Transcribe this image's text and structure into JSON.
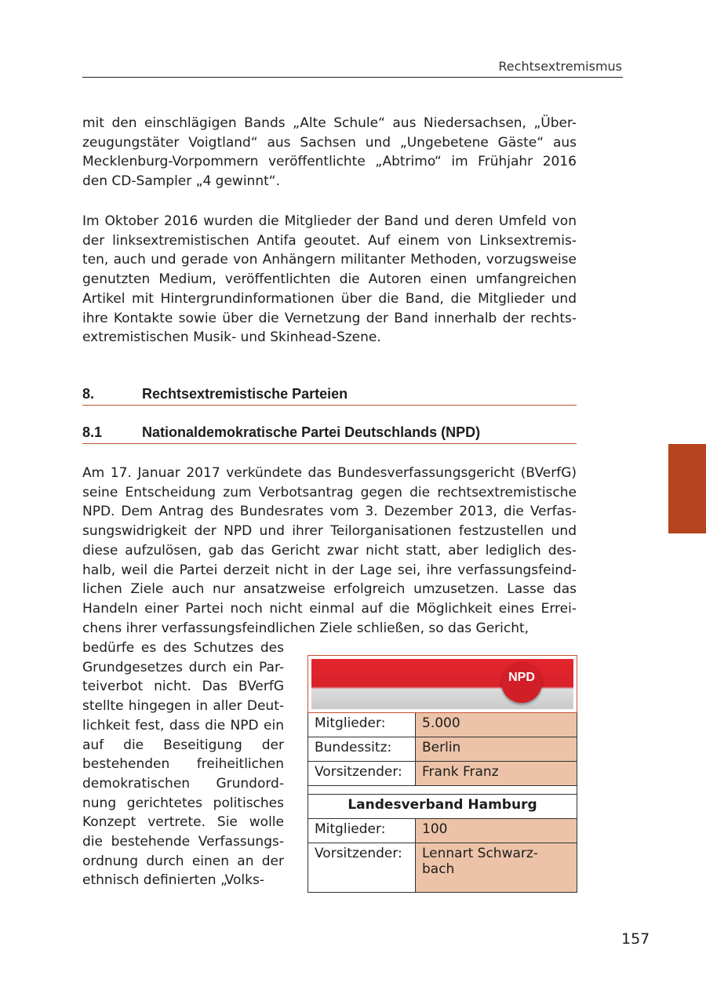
{
  "header": {
    "running_title": "Rechtsextremismus",
    "page_number": "157"
  },
  "paragraph1": [
    "mit den einschlägigen Bands „Alte Schule“ aus Niedersachsen, „Über-",
    "zeugungstäter Voigtland“ aus Sachsen und „Ungebetene Gäste“ aus",
    "Mecklenburg-Vorpommern veröffentlichte „Abtrimo“ im Frühjahr 2016",
    "den CD-Sampler „4 gewinnt“."
  ],
  "paragraph2": [
    "Im Oktober 2016 wurden die Mitglieder der Band und deren Umfeld von",
    "der linksextremistischen Antifa geoutet. Auf einem von Linksextremis-",
    "ten, auch und gerade von Anhängern militanter Methoden, vorzugsweise",
    "genutzten Medium, veröffentlichten die Autoren einen umfangreichen",
    "Artikel mit Hintergrundinformationen über die Band, die Mitglieder und",
    "ihre Kontakte sowie über die Vernetzung der Band innerhalb der rechts-",
    "extremistischen Musik- und Skinhead-Szene."
  ],
  "heading1": {
    "number": "8.",
    "title": "Rechtsextremistische Parteien"
  },
  "heading2": {
    "number": "8.1",
    "title": "Nationaldemokratische Partei Deutschlands (NPD)"
  },
  "paragraph3": [
    "Am 17. Januar 2017 verkündete das Bundesverfassungsgericht (BVerfG)",
    "seine Entscheidung zum Verbotsantrag gegen die rechtsextremistische",
    "NPD. Dem Antrag des Bundesrates vom 3. Dezember 2013, die Verfas-",
    "sungswidrigkeit der NPD und ihrer Teilorganisationen festzustellen und",
    "diese aufzulösen, gab das Gericht zwar nicht statt, aber lediglich des-",
    "halb, weil die Partei derzeit nicht in der Lage sei, ihre verfassungsfeind-",
    "lichen Ziele auch nur ansatzweise erfolgreich umzusetzen. Lasse das",
    "Handeln einer Partei noch nicht einmal auf die Möglichkeit eines Errei-",
    "chens ihrer verfassungsfeindlichen Ziele schließen, so das Gericht,"
  ],
  "paragraph3_narrow": [
    "bedürfe es des Schutzes des",
    "Grundgesetzes durch ein Par-",
    "teiverbot nicht. Das BVerfG",
    "stellte hingegen in aller Deut-",
    "lichkeit fest, dass die NPD ein",
    "auf die Beseitigung der",
    "bestehenden freiheitlichen",
    "demokratischen Grundord-",
    "nung gerichtetes politisches",
    "Konzept vertrete. Sie wolle",
    "die bestehende Verfassungs-",
    "ordnung durch einen an der",
    "ethnisch definierten „Volks-"
  ],
  "infobox": {
    "logo_text": "NPD",
    "rows": [
      {
        "label": "Mitglieder:",
        "value": "5.000"
      },
      {
        "label": "Bundessitz:",
        "value": "Berlin"
      },
      {
        "label": "Vorsitzender:",
        "value": "Frank Franz"
      }
    ],
    "subheading": "Landesverband Hamburg",
    "sub_rows": [
      {
        "label": "Mitglieder:",
        "value": "100"
      },
      {
        "label": "Vorsitzender:",
        "value": "Lennart Schwarz-bach"
      }
    ]
  },
  "colors": {
    "accent": "#b5441f",
    "value_cell": "#ecc3a8",
    "npd_red": "#d8222a"
  }
}
